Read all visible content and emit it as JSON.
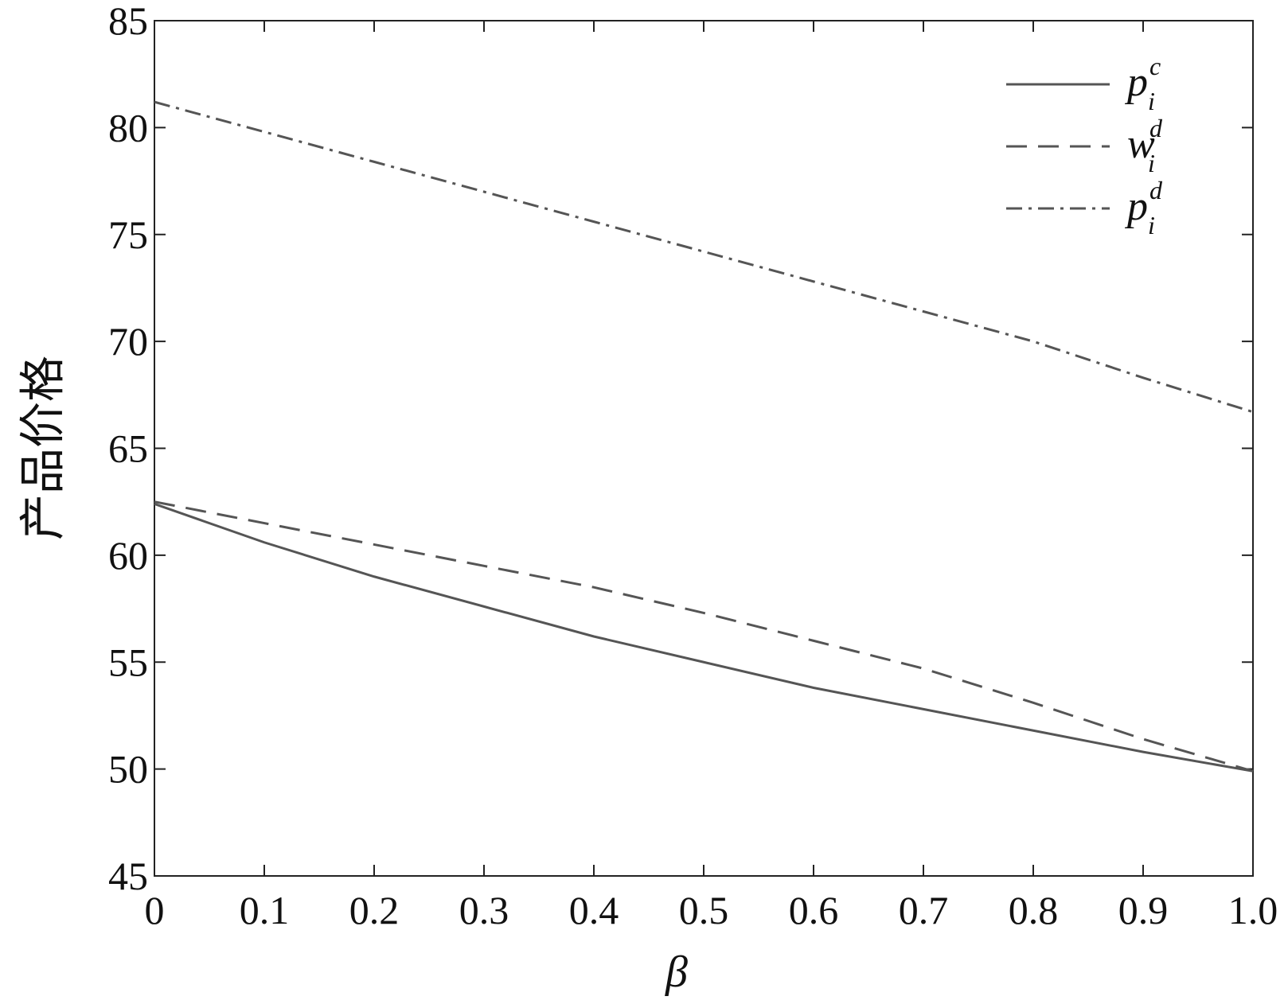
{
  "chart_data": {
    "type": "line",
    "x_label": "β",
    "y_label": "产品价格",
    "x": [
      0,
      0.1,
      0.2,
      0.3,
      0.4,
      0.5,
      0.6,
      0.7,
      0.8,
      0.9,
      1
    ],
    "series": [
      {
        "name": "p",
        "subscript": "i",
        "superscript": "c",
        "color": "#555555",
        "dash": "solid",
        "values": [
          62.4,
          60.6,
          59.0,
          57.6,
          56.2,
          55.0,
          53.8,
          52.8,
          51.8,
          50.8,
          49.9
        ]
      },
      {
        "name": "w",
        "subscript": "i",
        "superscript": "d",
        "color": "#555555",
        "dash": "dashed",
        "values": [
          62.5,
          61.5,
          60.5,
          59.5,
          58.5,
          57.3,
          56.0,
          54.7,
          53.1,
          51.4,
          49.9
        ]
      },
      {
        "name": "p",
        "subscript": "i",
        "superscript": "d",
        "color": "#555555",
        "dash": "dashdot",
        "values": [
          81.2,
          79.8,
          78.4,
          77.0,
          75.6,
          74.2,
          72.8,
          71.4,
          70.0,
          68.3,
          66.7
        ]
      }
    ],
    "xlim": [
      0,
      1
    ],
    "ylim": [
      45,
      85
    ],
    "xticks": [
      0,
      0.1,
      0.2,
      0.3,
      0.4,
      0.5,
      0.6,
      0.7,
      0.8,
      0.9,
      {
        "value": 1,
        "label": "1.0"
      }
    ],
    "yticks": [
      45,
      50,
      55,
      60,
      65,
      70,
      75,
      80,
      85
    ],
    "legend": "upper right",
    "grid": false
  }
}
